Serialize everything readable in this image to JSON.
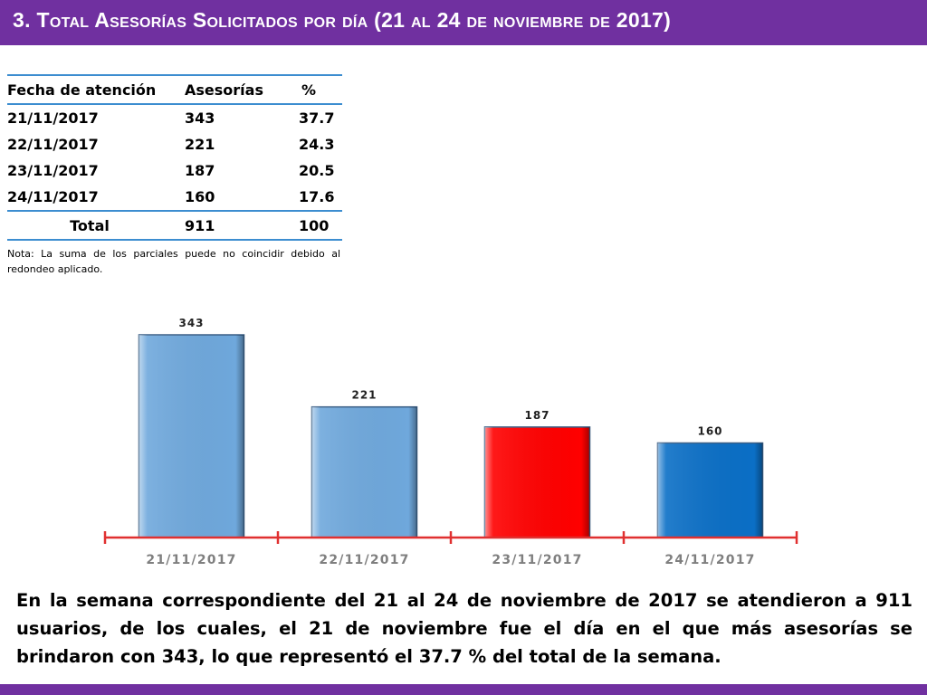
{
  "header": {
    "title": "3. Total Asesorías Solicitados por día (21 al 24 de noviembre de 2017)"
  },
  "table": {
    "headers": [
      "Fecha de atención",
      "Asesorías",
      "%"
    ],
    "rows": [
      [
        "21/11/2017",
        "343",
        "37.7"
      ],
      [
        "22/11/2017",
        "221",
        "24.3"
      ],
      [
        "23/11/2017",
        "187",
        "20.5"
      ],
      [
        "24/11/2017",
        "160",
        "17.6"
      ]
    ],
    "total": [
      "Total",
      "911",
      "100"
    ]
  },
  "note": "Nota: La suma de los parciales puede no coincidir debido al redondeo aplicado.",
  "chart_data": {
    "type": "bar",
    "categories": [
      "21/11/2017",
      "22/11/2017",
      "23/11/2017",
      "24/11/2017"
    ],
    "values": [
      343,
      221,
      187,
      160
    ],
    "data_labels": [
      "343",
      "221",
      "187",
      "160"
    ],
    "colors": [
      "#6fa8dc",
      "#6fa8dc",
      "#ff0000",
      "#0b6fc6"
    ],
    "axis_color": "#e03030",
    "ylim": [
      0,
      343
    ],
    "grid": false,
    "legend": "none"
  },
  "summary": "En la semana correspondiente del 21 al 24 de noviembre de 2017 se atendieron a 911 usuarios, de los cuales, el 21 de noviembre fue el día en el que más asesorías se brindaron con 343, lo que representó el 37.7 % del total de la semana."
}
